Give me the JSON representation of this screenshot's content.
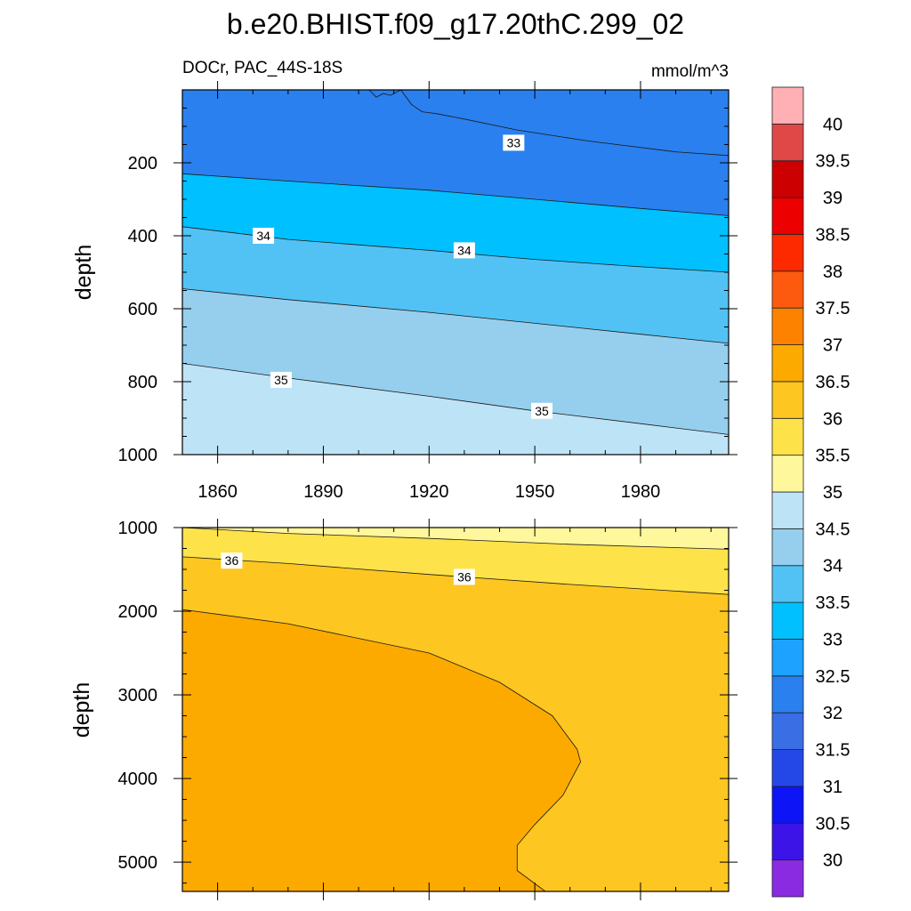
{
  "chart_data": {
    "type": "contour",
    "title": "b.e20.BHIST.f09_g17.20thC.299_02",
    "variable_label": "DOCr, PAC_44S-18S",
    "units": "mmol/m^3",
    "colorbar": {
      "levels": [
        30,
        30.5,
        31,
        31.5,
        32,
        32.5,
        33,
        33.5,
        34,
        34.5,
        35,
        35.5,
        36,
        36.5,
        37,
        37.5,
        38,
        38.5,
        39,
        39.5,
        40
      ],
      "level_labels": [
        "30",
        "30.5",
        "31",
        "31.5",
        "32",
        "32.5",
        "33",
        "33.5",
        "34",
        "34.5",
        "35",
        "35.5",
        "36",
        "36.5",
        "37",
        "37.5",
        "38",
        "38.5",
        "39",
        "39.5",
        "40"
      ],
      "colors": [
        "#8a2be2",
        "#3c14e8",
        "#0d14f5",
        "#2448e8",
        "#3a6ee4",
        "#2a80ee",
        "#1ea2ff",
        "#00c0ff",
        "#52c2f5",
        "#96cfee",
        "#bde3f7",
        "#fff79c",
        "#fde24a",
        "#fdc621",
        "#fdaa00",
        "#fd8200",
        "#fd5a10",
        "#fd2a00",
        "#ed0000",
        "#cc0000",
        "#e04848",
        "#ffb0b4"
      ]
    },
    "x": {
      "range": [
        1850,
        2005
      ],
      "ticks": [
        1860,
        1890,
        1920,
        1950,
        1980
      ],
      "tick_labels": [
        "1860",
        "1890",
        "1920",
        "1950",
        "1980"
      ]
    },
    "panels": [
      {
        "name": "upper",
        "ylabel": "depth",
        "ylim": [
          0,
          1000
        ],
        "yticks": [
          200,
          400,
          600,
          800,
          1000
        ],
        "ytick_labels": [
          "200",
          "400",
          "600",
          "800",
          "1000"
        ],
        "contours": [
          {
            "level": 32.5,
            "x": [
              1903,
              1905,
              1907,
              1909,
              1912,
              1915,
              1918,
              1922,
              1930,
              1945,
              1965,
              1990,
              2005
            ],
            "depth": [
              0,
              20,
              10,
              15,
              0,
              40,
              60,
              65,
              80,
              110,
              140,
              170,
              180
            ]
          },
          {
            "level": 33,
            "x": [
              1850,
              1880,
              1920,
              1950,
              1980,
              2005
            ],
            "depth": [
              230,
              250,
              275,
              300,
              325,
              345
            ]
          },
          {
            "level": 33.5,
            "x": [
              1850,
              1880,
              1920,
              1950,
              1980,
              2005
            ],
            "depth": [
              375,
              410,
              440,
              465,
              485,
              500
            ]
          },
          {
            "level": 34,
            "x": [
              1850,
              1880,
              1920,
              1950,
              1980,
              2005
            ],
            "depth": [
              545,
              575,
              610,
              640,
              670,
              695
            ]
          },
          {
            "level": 34.5,
            "x": [
              1850,
              1880,
              1920,
              1950,
              1980,
              2005
            ],
            "depth": [
              750,
              790,
              840,
              880,
              915,
              945
            ]
          }
        ],
        "contour_labels": [
          {
            "text": "33",
            "x": 1944,
            "depth": 145
          },
          {
            "text": "34",
            "x": 1873,
            "depth": 400
          },
          {
            "text": "34",
            "x": 1930,
            "depth": 440
          },
          {
            "text": "35",
            "x": 1878,
            "depth": 795
          },
          {
            "text": "35",
            "x": 1952,
            "depth": 880
          }
        ]
      },
      {
        "name": "lower",
        "ylabel": "depth",
        "ylim": [
          1000,
          5350
        ],
        "yticks": [
          1000,
          2000,
          3000,
          4000,
          5000
        ],
        "ytick_labels": [
          "1000",
          "2000",
          "3000",
          "4000",
          "5000"
        ],
        "contours": [
          {
            "level": 35.5,
            "x": [
              1850,
              1880,
              1920,
              1960,
              2005
            ],
            "depth": [
              1000,
              1070,
              1130,
              1200,
              1260
            ]
          },
          {
            "level": 36,
            "x": [
              1850,
              1880,
              1920,
              1960,
              2005
            ],
            "depth": [
              1350,
              1430,
              1560,
              1680,
              1800
            ]
          },
          {
            "level": 36.5,
            "x": [
              1850,
              1880,
              1920,
              1940,
              1955,
              1962,
              1963,
              1958,
              1950,
              1945,
              1945,
              1953
            ],
            "depth": [
              1980,
              2150,
              2500,
              2850,
              3250,
              3650,
              3800,
              4200,
              4550,
              4800,
              5100,
              5350
            ]
          }
        ],
        "contour_labels": [
          {
            "text": "36",
            "x": 1864,
            "depth": 1395
          },
          {
            "text": "36",
            "x": 1930,
            "depth": 1590
          }
        ]
      }
    ]
  }
}
